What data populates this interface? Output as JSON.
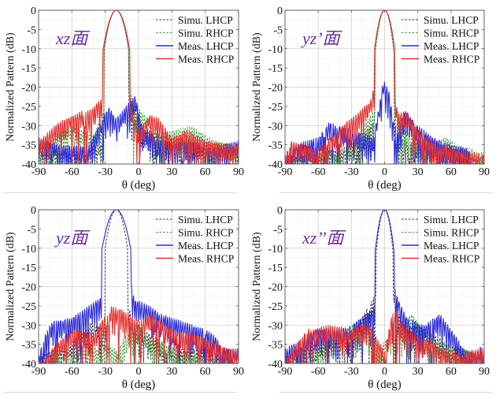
{
  "figure": {
    "panel_grid": "2x2",
    "colors": {
      "simu_lhcp": "#333333",
      "simu_rhcp": "#3a9a3a",
      "meas_lhcp": "#2b2bd6",
      "meas_rhcp": "#e53030",
      "panel_title": "#7030a0",
      "grid": "#d0d0d0",
      "separator": "#d9d9d9"
    }
  },
  "chart_data": [
    {
      "type": "line",
      "title": "xz面",
      "xlabel": "θ (deg)",
      "ylabel": "Normalized Pattern (dB)",
      "xlim": [
        -90,
        90
      ],
      "ylim": [
        -40,
        0
      ],
      "xticks": [
        -90,
        -60,
        -30,
        0,
        30,
        60,
        90
      ],
      "yticks": [
        0,
        -5,
        -10,
        -15,
        -20,
        -25,
        -30,
        -35,
        -40
      ],
      "grid": true,
      "legend": {
        "placement": "top-right",
        "entries": [
          "Simu. LHCP",
          "Simu. RHCP",
          "Meas. LHCP",
          "Meas. RHCP"
        ]
      },
      "series": [
        {
          "name": "Simu. LHCP",
          "style": "dashed",
          "peak": {
            "theta": -20,
            "value": 0,
            "halfwidth": 6
          },
          "envelope": [
            [
              -90,
              -37
            ],
            [
              -60,
              -36
            ],
            [
              -35,
              -35
            ],
            [
              -28,
              -33
            ],
            [
              -12,
              -28
            ],
            [
              -3,
              -25
            ],
            [
              5,
              -31
            ],
            [
              30,
              -33
            ],
            [
              60,
              -34
            ],
            [
              90,
              -36
            ]
          ],
          "seed": 11
        },
        {
          "name": "Simu. RHCP",
          "style": "dashed",
          "peak": {
            "theta": -20,
            "value": 0,
            "halfwidth": 6
          },
          "envelope": [
            [
              -90,
              -36
            ],
            [
              -62,
              -30
            ],
            [
              -40,
              -32
            ],
            [
              -27,
              -23
            ],
            [
              -11,
              -20
            ],
            [
              2,
              -26
            ],
            [
              20,
              -32
            ],
            [
              35,
              -31
            ],
            [
              47,
              -30
            ],
            [
              70,
              -34
            ],
            [
              90,
              -35
            ]
          ],
          "seed": 23
        },
        {
          "name": "Meas. LHCP",
          "style": "solid",
          "peak": null,
          "envelope": [
            [
              -90,
              -33
            ],
            [
              -70,
              -35
            ],
            [
              -45,
              -35
            ],
            [
              -27,
              -25
            ],
            [
              -20,
              -28
            ],
            [
              -3,
              -22
            ],
            [
              3,
              -30
            ],
            [
              20,
              -34
            ],
            [
              45,
              -34
            ],
            [
              70,
              -35
            ],
            [
              90,
              -34
            ]
          ],
          "seed": 37
        },
        {
          "name": "Meas. RHCP",
          "style": "solid",
          "peak": {
            "theta": -20,
            "value": 0,
            "halfwidth": 6.5
          },
          "envelope": [
            [
              -90,
              -34
            ],
            [
              -72,
              -29
            ],
            [
              -50,
              -26
            ],
            [
              -44,
              -26
            ],
            [
              -30,
              -22
            ],
            [
              -10,
              -22
            ],
            [
              0,
              -31
            ],
            [
              10,
              -27
            ],
            [
              18,
              -28
            ],
            [
              30,
              -33
            ],
            [
              45,
              -31
            ],
            [
              60,
              -34
            ],
            [
              90,
              -35
            ]
          ],
          "seed": 53
        }
      ]
    },
    {
      "type": "line",
      "title": "yz’面",
      "xlabel": "θ (deg)",
      "ylabel": "Normalized Pattern (dB)",
      "xlim": [
        -90,
        90
      ],
      "ylim": [
        -40,
        0
      ],
      "xticks": [
        -90,
        -60,
        -30,
        0,
        30,
        60,
        90
      ],
      "yticks": [
        0,
        -5,
        -10,
        -15,
        -20,
        -25,
        -30,
        -35,
        -40
      ],
      "grid": true,
      "legend": {
        "placement": "top-right",
        "entries": [
          "Simu. LHCP",
          "Simu. RHCP",
          "Meas. LHCP",
          "Meas. RHCP"
        ]
      },
      "series": [
        {
          "name": "Simu. LHCP",
          "style": "dashed",
          "peak": {
            "theta": 0,
            "value": 0,
            "halfwidth": 4.5
          },
          "envelope": [
            [
              -90,
              -38
            ],
            [
              -60,
              -37
            ],
            [
              -30,
              -35
            ],
            [
              -12,
              -30
            ],
            [
              -4,
              -24
            ],
            [
              5,
              -22
            ],
            [
              12,
              -33
            ],
            [
              40,
              -36
            ],
            [
              90,
              -38
            ]
          ],
          "seed": 61
        },
        {
          "name": "Simu. RHCP",
          "style": "dashed",
          "peak": {
            "theta": 0,
            "value": 0,
            "halfwidth": 4.5
          },
          "envelope": [
            [
              -90,
              -38
            ],
            [
              -60,
              -38
            ],
            [
              -30,
              -35
            ],
            [
              -8,
              -25
            ],
            [
              -4,
              -15
            ],
            [
              5,
              -19
            ],
            [
              10,
              -25
            ],
            [
              30,
              -35
            ],
            [
              56,
              -33
            ],
            [
              66,
              -35
            ],
            [
              90,
              -37
            ]
          ],
          "seed": 71
        },
        {
          "name": "Meas. LHCP",
          "style": "solid",
          "peak": null,
          "envelope": [
            [
              -90,
              -38
            ],
            [
              -84,
              -35
            ],
            [
              -60,
              -33
            ],
            [
              -50,
              -29
            ],
            [
              -30,
              -31
            ],
            [
              -10,
              -33
            ],
            [
              -1,
              -18
            ],
            [
              4,
              -21
            ],
            [
              10,
              -33
            ],
            [
              18,
              -26
            ],
            [
              30,
              -30
            ],
            [
              50,
              -34
            ],
            [
              75,
              -36
            ],
            [
              80,
              -40
            ]
          ],
          "seed": 83
        },
        {
          "name": "Meas. RHCP",
          "style": "solid",
          "peak": {
            "theta": 0,
            "value": 0,
            "halfwidth": 5
          },
          "envelope": [
            [
              -90,
              -38
            ],
            [
              -85,
              -34
            ],
            [
              -60,
              -36
            ],
            [
              -35,
              -29
            ],
            [
              -25,
              -27
            ],
            [
              -12,
              -23
            ],
            [
              -5,
              -13
            ],
            [
              5,
              -13
            ],
            [
              12,
              -27
            ],
            [
              20,
              -26
            ],
            [
              30,
              -31
            ],
            [
              50,
              -35
            ],
            [
              80,
              -37
            ]
          ],
          "seed": 97
        }
      ]
    },
    {
      "type": "line",
      "title": "yz面",
      "xlabel": "θ (deg)",
      "ylabel": "Normalized Pattern (dB)",
      "xlim": [
        -90,
        90
      ],
      "ylim": [
        -40,
        0
      ],
      "xticks": [
        -90,
        -60,
        -30,
        0,
        30,
        60,
        90
      ],
      "yticks": [
        0,
        -5,
        -10,
        -15,
        -20,
        -25,
        -30,
        -35,
        -40
      ],
      "grid": true,
      "legend": {
        "placement": "top-right",
        "entries": [
          "Simu. LHCP",
          "Simu. RHCP",
          "Meas. LHCP",
          "Meas. RHCP"
        ]
      },
      "series": [
        {
          "name": "Simu. LHCP",
          "style": "dashed",
          "peak": {
            "theta": -20,
            "value": 0,
            "halfwidth": 5.5
          },
          "envelope": [
            [
              -90,
              -38
            ],
            [
              -60,
              -34
            ],
            [
              -42,
              -29
            ],
            [
              -30,
              -31
            ],
            [
              -12,
              -22
            ],
            [
              -4,
              -30
            ],
            [
              10,
              -32
            ],
            [
              30,
              -36
            ],
            [
              60,
              -36
            ],
            [
              90,
              -40
            ]
          ],
          "seed": 101
        },
        {
          "name": "Simu. RHCP",
          "style": "dashed",
          "peak": null,
          "envelope": [
            [
              -90,
              -38
            ],
            [
              -60,
              -37
            ],
            [
              -30,
              -35
            ],
            [
              -20,
              -36
            ],
            [
              -3,
              -29
            ],
            [
              10,
              -33
            ],
            [
              40,
              -37
            ],
            [
              90,
              -40
            ]
          ],
          "seed": 113
        },
        {
          "name": "Meas. LHCP",
          "style": "solid",
          "peak": {
            "theta": -20,
            "value": 0,
            "halfwidth": 7
          },
          "envelope": [
            [
              -90,
              -38
            ],
            [
              -85,
              -33
            ],
            [
              -78,
              -29
            ],
            [
              -60,
              -28
            ],
            [
              -45,
              -25
            ],
            [
              -30,
              -22
            ],
            [
              -11,
              -13
            ],
            [
              -4,
              -23
            ],
            [
              10,
              -25
            ],
            [
              20,
              -27
            ],
            [
              40,
              -29
            ],
            [
              60,
              -31
            ],
            [
              70,
              -33
            ],
            [
              75,
              -36
            ]
          ],
          "seed": 127
        },
        {
          "name": "Meas. RHCP",
          "style": "solid",
          "peak": null,
          "envelope": [
            [
              -90,
              -40
            ],
            [
              -75,
              -35
            ],
            [
              -60,
              -31
            ],
            [
              -40,
              -32
            ],
            [
              -25,
              -25
            ],
            [
              -15,
              -26
            ],
            [
              0,
              -29
            ],
            [
              10,
              -27
            ],
            [
              30,
              -31
            ],
            [
              60,
              -33
            ],
            [
              80,
              -36
            ]
          ],
          "seed": 139
        }
      ]
    },
    {
      "type": "line",
      "title": "xz’’面",
      "xlabel": "θ (deg)",
      "ylabel": "Normalized Pattern (dB)",
      "xlim": [
        -90,
        90
      ],
      "ylim": [
        -40,
        0
      ],
      "xticks": [
        -90,
        -60,
        -30,
        0,
        30,
        60,
        90
      ],
      "yticks": [
        0,
        -5,
        -10,
        -15,
        -20,
        -25,
        -30,
        -35,
        -40
      ],
      "grid": true,
      "legend": {
        "placement": "top-right",
        "entries": [
          "Simu. LHCP",
          "Simu. RHCP",
          "Meas. LHCP",
          "Meas. RHCP"
        ]
      },
      "series": [
        {
          "name": "Simu. LHCP",
          "style": "dashed",
          "peak": {
            "theta": 0,
            "value": 0,
            "halfwidth": 4
          },
          "envelope": [
            [
              -90,
              -37
            ],
            [
              -60,
              -34
            ],
            [
              -30,
              -33
            ],
            [
              -5,
              -20
            ],
            [
              6,
              -16
            ],
            [
              15,
              -30
            ],
            [
              30,
              -30
            ],
            [
              60,
              -35
            ],
            [
              90,
              -38
            ]
          ],
          "seed": 151
        },
        {
          "name": "Simu. RHCP",
          "style": "dashed",
          "peak": null,
          "envelope": [
            [
              -90,
              -38
            ],
            [
              -60,
              -36
            ],
            [
              -20,
              -28
            ],
            [
              -5,
              -36
            ],
            [
              8,
              -31
            ],
            [
              25,
              -27
            ],
            [
              40,
              -33
            ],
            [
              60,
              -35
            ],
            [
              90,
              -38
            ]
          ],
          "seed": 163
        },
        {
          "name": "Meas. LHCP",
          "style": "solid",
          "peak": {
            "theta": 0,
            "value": 0,
            "halfwidth": 4.5
          },
          "envelope": [
            [
              -90,
              -36
            ],
            [
              -60,
              -31
            ],
            [
              -30,
              -30
            ],
            [
              -8,
              -25
            ],
            [
              8,
              -19
            ],
            [
              12,
              -23
            ],
            [
              20,
              -28
            ],
            [
              35,
              -30
            ],
            [
              50,
              -27
            ],
            [
              65,
              -33
            ],
            [
              75,
              -38
            ],
            [
              90,
              -35
            ]
          ],
          "seed": 173
        },
        {
          "name": "Meas. RHCP",
          "style": "solid",
          "peak": null,
          "envelope": [
            [
              -90,
              -39
            ],
            [
              -70,
              -31
            ],
            [
              -50,
              -30
            ],
            [
              -30,
              -31
            ],
            [
              -15,
              -29
            ],
            [
              0,
              -37
            ],
            [
              8,
              -25
            ],
            [
              20,
              -31
            ],
            [
              40,
              -34
            ],
            [
              60,
              -37
            ],
            [
              90,
              -36
            ]
          ],
          "seed": 181
        }
      ]
    }
  ]
}
